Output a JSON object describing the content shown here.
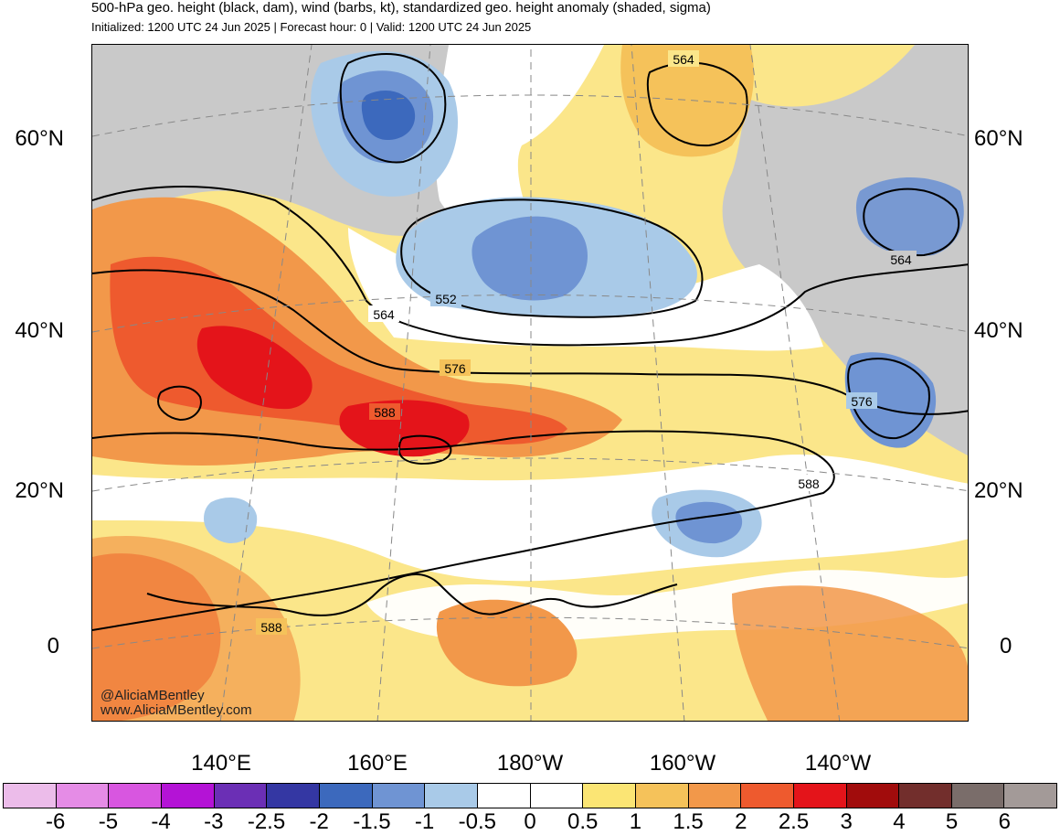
{
  "header": {
    "title": "500-hPa geo. height (black, dam), wind (barbs, kt), standardized geo. height anomaly (shaded, sigma)",
    "subtitle": "Initialized: 1200 UTC 24 Jun 2025 | Forecast hour: 0 | Valid: 1200 UTC 24 Jun 2025"
  },
  "map": {
    "lat_labels": [
      "60°N",
      "40°N",
      "20°N",
      "0"
    ],
    "lon_labels": [
      "140°E",
      "160°E",
      "180°W",
      "160°W",
      "140°W"
    ],
    "contour_labels": [
      "564",
      "564",
      "564",
      "552",
      "576",
      "576",
      "588",
      "588",
      "588"
    ],
    "credit_handle": "@AliciaMBentley",
    "credit_site": "www.AliciaMBentley.com"
  },
  "colorbar": {
    "labels": [
      "-6",
      "-5",
      "-4",
      "-3",
      "-2.5",
      "-2",
      "-1.5",
      "-1",
      "-0.5",
      "0",
      "0.5",
      "1",
      "1.5",
      "2",
      "2.5",
      "3",
      "4",
      "5",
      "6"
    ],
    "colors": [
      "#ecbcea",
      "#e58ce6",
      "#d856e0",
      "#b413d6",
      "#6b2fb5",
      "#3437a3",
      "#3c69bd",
      "#6f94d3",
      "#a9cae8",
      "#ffffff",
      "#ffffff",
      "#fbe574",
      "#f5c25a",
      "#f2984a",
      "#ee5a2e",
      "#e4141a",
      "#a10c0c",
      "#722e2c",
      "#7a6d6a",
      "#a39a98"
    ]
  }
}
